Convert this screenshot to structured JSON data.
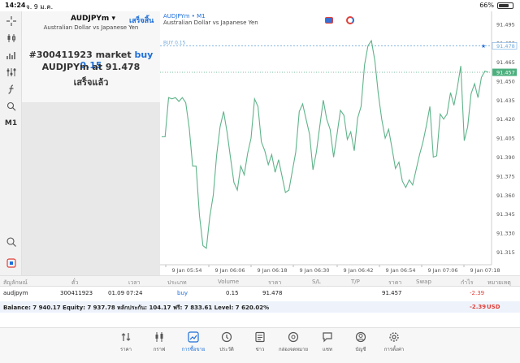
{
  "status_bar": {
    "time": "14:24",
    "date": "จ. 9 ม.ค.",
    "battery": "66%",
    "battery_level": 0.66
  },
  "notification": {
    "symbol": "AUDJPYm",
    "done_label": "เสร็จสิ้น",
    "description": "Australian Dollar vs Japanese Yen",
    "order_prefix": "#300411923 market",
    "order_side": "buy 0.15",
    "fill_prefix": "AUDJPYm at",
    "fill_price": "91.478",
    "status": "เสร็จแล้ว"
  },
  "toolbar": {
    "timeframe": "M1"
  },
  "chart": {
    "title": "AUDJPYm • M1",
    "subtitle": "Australian Dollar vs Japanese Yen",
    "buy_label": "BUY 0.15",
    "buy_price_label": "91.478",
    "bid_price_label": "91.457",
    "colors": {
      "line": "#5fb38a",
      "buy_line": "#6fa8dc",
      "bid_line": "#4caf7d",
      "bid_tag": "#4caf7d"
    }
  },
  "chart_data": {
    "type": "line",
    "ylim": [
      91.305,
      91.5
    ],
    "y_ticks": [
      "91.495",
      "91.480",
      "91.465",
      "91.450",
      "91.435",
      "91.420",
      "91.405",
      "91.390",
      "91.375",
      "91.360",
      "91.345",
      "91.330",
      "91.315"
    ],
    "x_ticks": [
      "9 Jan 05:54",
      "9 Jan 06:06",
      "9 Jan 06:18",
      "9 Jan 06:30",
      "9 Jan 06:42",
      "9 Jan 06:54",
      "9 Jan 07:06",
      "9 Jan 07:18"
    ],
    "buy_price": 91.478,
    "bid_price": 91.457,
    "series": [
      {
        "values": [
          91.406,
          91.406,
          91.437,
          91.436,
          91.437,
          91.434,
          91.437,
          91.433,
          91.413,
          91.383,
          91.383,
          91.344,
          91.32,
          91.318,
          91.343,
          91.36,
          91.392,
          91.414,
          91.426,
          91.41,
          91.39,
          91.37,
          91.364,
          91.383,
          91.376,
          91.393,
          91.405,
          91.436,
          91.43,
          91.402,
          91.395,
          91.384,
          91.392,
          91.378,
          91.388,
          91.375,
          91.362,
          91.364,
          91.379,
          91.394,
          91.426,
          91.432,
          91.42,
          91.408,
          91.38,
          91.394,
          91.415,
          91.435,
          91.42,
          91.412,
          91.39,
          91.408,
          91.427,
          91.423,
          91.404,
          91.41,
          91.395,
          91.421,
          91.43,
          91.463,
          91.478,
          91.482,
          91.466,
          91.44,
          91.42,
          91.405,
          91.412,
          91.397,
          91.381,
          91.386,
          91.371,
          91.366,
          91.372,
          91.368,
          91.38,
          91.392,
          91.402,
          91.415,
          91.43,
          91.39,
          91.391,
          91.424,
          91.42,
          91.424,
          91.441,
          91.431,
          91.445,
          91.462,
          91.403,
          91.414,
          91.44,
          91.448,
          91.437,
          91.453,
          91.458,
          91.457
        ]
      }
    ]
  },
  "table": {
    "headers": [
      "สัญลักษณ์",
      "ตั๋ว",
      "เวลา",
      "ประเภท",
      "Volume",
      "ราคา",
      "S/L",
      "T/P",
      "ราคา",
      "Swap",
      "กำไร",
      "หมายเหตุ"
    ],
    "row": {
      "symbol": "audjpym",
      "ticket": "300411923",
      "time": "01.09 07:24",
      "type": "buy",
      "volume": "0.15",
      "open_price": "91.478",
      "current_price": "91.457",
      "profit": "-2.39"
    },
    "balance_text": "Balance: 7 940.17 Equity: 7 937.78 หลักประกัน: 104.17 ฟรี: 7 833.61 Level: 7 620.02%",
    "balance_profit": "-2.39",
    "currency": "USD"
  },
  "nav": [
    {
      "label": "ราคา",
      "icon": "quotes-icon"
    },
    {
      "label": "กราฟ",
      "icon": "chart-icon"
    },
    {
      "label": "การซื้อขาย",
      "icon": "trade-icon",
      "active": true
    },
    {
      "label": "ประวัติ",
      "icon": "history-icon"
    },
    {
      "label": "ข่าว",
      "icon": "news-icon"
    },
    {
      "label": "กล่องจดหมาย",
      "icon": "mailbox-icon"
    },
    {
      "label": "แชท",
      "icon": "chat-icon"
    },
    {
      "label": "บัญชี",
      "icon": "account-icon"
    },
    {
      "label": "การตั้งค่า",
      "icon": "settings-icon"
    }
  ]
}
